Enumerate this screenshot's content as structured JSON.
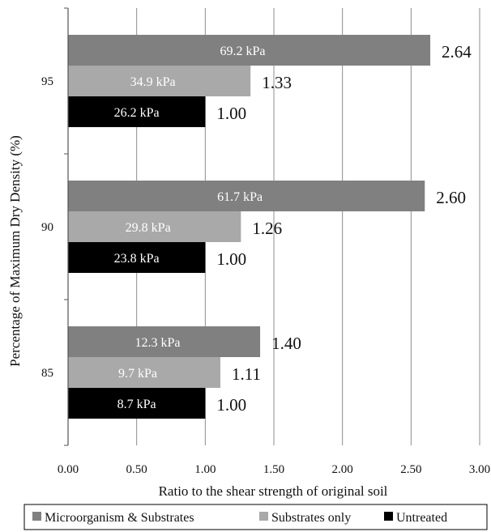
{
  "chart_data": {
    "type": "bar",
    "orientation": "horizontal",
    "categories": [
      "95",
      "90",
      "85"
    ],
    "series": [
      {
        "name": "Microorganism & Substrates",
        "color": "#808080",
        "values": [
          2.64,
          2.6,
          1.4
        ],
        "bar_labels": [
          "69.2 kPa",
          "61.7 kPa",
          "12.3 kPa"
        ],
        "ratio_labels": [
          "2.64",
          "2.60",
          "1.40"
        ]
      },
      {
        "name": "Substrates only",
        "color": "#a9a9a9",
        "values": [
          1.33,
          1.26,
          1.11
        ],
        "bar_labels": [
          "34.9 kPa",
          "29.8 kPa",
          "9.7 kPa"
        ],
        "ratio_labels": [
          "1.33",
          "1.26",
          "1.11"
        ]
      },
      {
        "name": "Untreated",
        "color": "#000000",
        "values": [
          1.0,
          1.0,
          1.0
        ],
        "bar_labels": [
          "26.2 kPa",
          "23.8 kPa",
          "8.7 kPa"
        ],
        "ratio_labels": [
          "1.00",
          "1.00",
          "1.00"
        ]
      }
    ],
    "xlabel": "Ratio to the shear strength of original soil",
    "ylabel": "Percentage of Maximum Dry Density (%)",
    "xlim": [
      0,
      3
    ],
    "xticks": [
      "0.00",
      "0.50",
      "1.00",
      "1.50",
      "2.00",
      "2.50",
      "3.00"
    ],
    "grid": "vertical",
    "legend_position": "bottom"
  }
}
